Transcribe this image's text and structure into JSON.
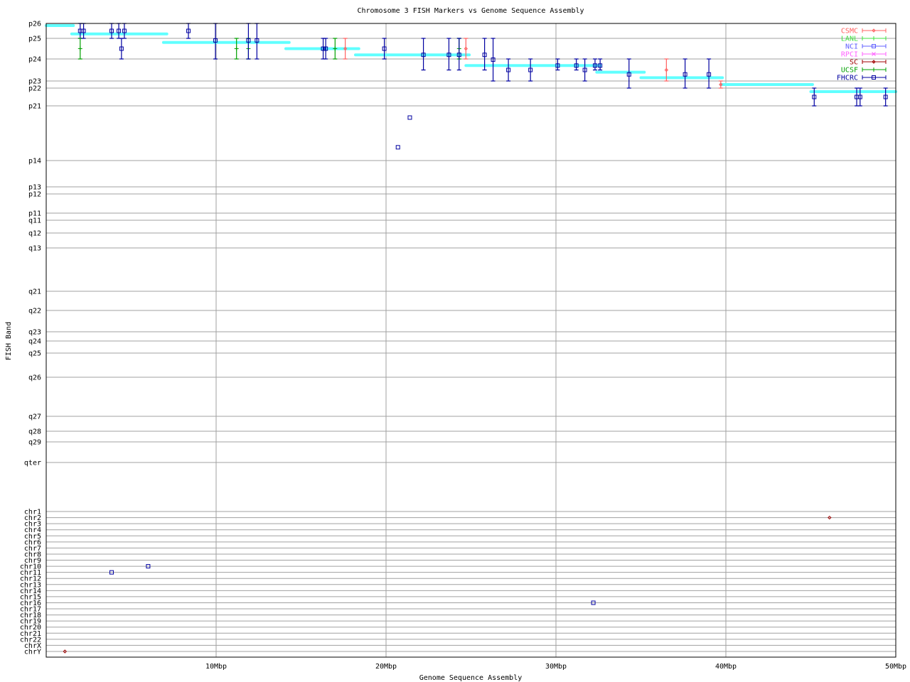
{
  "chart_data": {
    "type": "scatter",
    "title": "Chromosome 3 FISH Markers vs Genome Sequence Assembly",
    "xlabel": "Genome Sequence Assembly",
    "ylabel": "FISH Band",
    "xlim": [
      0,
      50
    ],
    "x_ticks": [
      {
        "v": 10,
        "label": "10Mbp"
      },
      {
        "v": 20,
        "label": "20Mbp"
      },
      {
        "v": 30,
        "label": "30Mbp"
      },
      {
        "v": 40,
        "label": "40Mbp"
      },
      {
        "v": 50,
        "label": "50Mbp"
      }
    ],
    "y_ticks": [
      "p26",
      "p25",
      "p24",
      "p23",
      "p22",
      "p21",
      "p14",
      "p13",
      "p12",
      "p11",
      "q11",
      "q12",
      "q13",
      "q21",
      "q22",
      "q23",
      "q24",
      "q25",
      "q26",
      "q27",
      "q28",
      "q29",
      "qter",
      "chr1",
      "chr2",
      "chr3",
      "chr4",
      "chr5",
      "chr6",
      "chr7",
      "chr8",
      "chr9",
      "chr10",
      "chr11",
      "chr12",
      "chr13",
      "chr14",
      "chr15",
      "chr16",
      "chr17",
      "chr18",
      "chr19",
      "chr20",
      "chr21",
      "chr22",
      "chrX",
      "chrY"
    ],
    "grid": true,
    "legend_position": "top-right",
    "legend": [
      {
        "name": "CSMC",
        "color": "#ff6060",
        "marker": "diamond"
      },
      {
        "name": "LANL",
        "color": "#40e040",
        "marker": "plus"
      },
      {
        "name": "NCI",
        "color": "#6060ff",
        "marker": "square"
      },
      {
        "name": "RPCI",
        "color": "#ff60ff",
        "marker": "cross"
      },
      {
        "name": "SC",
        "color": "#a00000",
        "marker": "diamond"
      },
      {
        "name": "UCSF",
        "color": "#00a000",
        "marker": "plus"
      },
      {
        "name": "FHCRC",
        "color": "#0000a0",
        "marker": "square"
      }
    ],
    "assembly_color": "#60ffff",
    "assembly_segments": [
      {
        "x0": 0,
        "x1": 1.6,
        "band": "p25.86"
      },
      {
        "x0": 1.5,
        "x1": 7.1,
        "band": "p25.3"
      },
      {
        "x0": 6.9,
        "x1": 14.3,
        "band": "p24.8"
      },
      {
        "x0": 14.1,
        "x1": 18.4,
        "band": "p24.5"
      },
      {
        "x0": 18.2,
        "x1": 24.9,
        "band": "p24.2"
      },
      {
        "x0": 24.7,
        "x1": 32.6,
        "band": "p23.7"
      },
      {
        "x0": 32.4,
        "x1": 35.2,
        "band": "p23.4"
      },
      {
        "x0": 35.0,
        "x1": 39.8,
        "band": "p23.15"
      },
      {
        "x0": 39.7,
        "x1": 45.1,
        "band": "p22.5"
      },
      {
        "x0": 45.0,
        "x1": 50.0,
        "band": "p21.8"
      }
    ],
    "points": [
      {
        "x": 2.0,
        "y": "p25.5",
        "lo": "p25",
        "hi": "p26",
        "src": "FHCRC"
      },
      {
        "x": 2.0,
        "y": "p24.5",
        "lo": "p24",
        "hi": "p25",
        "src": "UCSF"
      },
      {
        "x": 2.2,
        "y": "p25.5",
        "lo": "p25",
        "hi": "p26",
        "src": "FHCRC"
      },
      {
        "x": 3.85,
        "y": "p25.5",
        "lo": "p25",
        "hi": "p26",
        "src": "FHCRC"
      },
      {
        "x": 4.27,
        "y": "p25.5",
        "lo": "p25",
        "hi": "p26",
        "src": "FHCRC"
      },
      {
        "x": 4.43,
        "y": "p24.5",
        "lo": "p24",
        "hi": "p25",
        "src": "FHCRC"
      },
      {
        "x": 4.6,
        "y": "p25.5",
        "lo": "p25",
        "hi": "p26",
        "src": "FHCRC"
      },
      {
        "x": 8.37,
        "y": "p25.5",
        "lo": "p25",
        "hi": "p26",
        "src": "FHCRC"
      },
      {
        "x": 9.96,
        "y": "p24.9",
        "lo": "p24",
        "hi": "p26",
        "src": "FHCRC"
      },
      {
        "x": 11.2,
        "y": "p24.5",
        "lo": "p24",
        "hi": "p25",
        "src": "UCSF"
      },
      {
        "x": 11.9,
        "y": "p24.5",
        "lo": "p24",
        "hi": "p25",
        "src": "UCSF"
      },
      {
        "x": 11.9,
        "y": "p24.9",
        "lo": "p24",
        "hi": "p26",
        "src": "FHCRC"
      },
      {
        "x": 12.4,
        "y": "p24.9",
        "lo": "p24",
        "hi": "p26",
        "src": "FHCRC"
      },
      {
        "x": 16.3,
        "y": "p24.5",
        "lo": "p24",
        "hi": "p25",
        "src": "FHCRC"
      },
      {
        "x": 16.45,
        "y": "p24.5",
        "lo": "p24",
        "hi": "p25",
        "src": "FHCRC"
      },
      {
        "x": 17.0,
        "y": "p24.5",
        "lo": "p24",
        "hi": "p25",
        "src": "UCSF"
      },
      {
        "x": 17.6,
        "y": "p24.5",
        "lo": "p24",
        "hi": "p25",
        "src": "CSMC"
      },
      {
        "x": 19.9,
        "y": "p24.5",
        "lo": "p24",
        "hi": "p25",
        "src": "FHCRC"
      },
      {
        "x": 20.7,
        "y": "p15.7",
        "src": "FHCRC"
      },
      {
        "x": 21.4,
        "y": "p19.5",
        "src": "FHCRC"
      },
      {
        "x": 22.2,
        "y": "p24.2",
        "lo": "p23.5",
        "hi": "p25",
        "src": "FHCRC"
      },
      {
        "x": 23.7,
        "y": "p24.2",
        "lo": "p23.5",
        "hi": "p25",
        "src": "FHCRC"
      },
      {
        "x": 24.3,
        "y": "p24.5",
        "lo": "p24",
        "hi": "p25",
        "src": "UCSF"
      },
      {
        "x": 24.3,
        "y": "p24.2",
        "lo": "p23.5",
        "hi": "p25",
        "src": "FHCRC"
      },
      {
        "x": 24.7,
        "y": "p24.5",
        "lo": "p24",
        "hi": "p25",
        "src": "CSMC"
      },
      {
        "x": 25.8,
        "y": "p24.2",
        "lo": "p23.5",
        "hi": "p25",
        "src": "FHCRC"
      },
      {
        "x": 26.3,
        "y": "p23.97",
        "lo": "p23",
        "hi": "p25",
        "src": "FHCRC"
      },
      {
        "x": 27.2,
        "y": "p23.5",
        "lo": "p23",
        "hi": "p24",
        "src": "FHCRC"
      },
      {
        "x": 28.5,
        "y": "p23.5",
        "lo": "p23",
        "hi": "p24",
        "src": "FHCRC"
      },
      {
        "x": 30.1,
        "y": "p23.7",
        "lo": "p23.5",
        "hi": "p24",
        "src": "FHCRC"
      },
      {
        "x": 31.2,
        "y": "p23.7",
        "lo": "p23.5",
        "hi": "p24",
        "src": "FHCRC"
      },
      {
        "x": 31.7,
        "y": "p23.5",
        "lo": "p23",
        "hi": "p24",
        "src": "FHCRC"
      },
      {
        "x": 32.3,
        "y": "p23.7",
        "lo": "p23.5",
        "hi": "p24",
        "src": "FHCRC"
      },
      {
        "x": 32.6,
        "y": "p23.7",
        "lo": "p23.5",
        "hi": "p24",
        "src": "FHCRC"
      },
      {
        "x": 34.3,
        "y": "p23.3",
        "lo": "p22",
        "hi": "p24",
        "src": "FHCRC"
      },
      {
        "x": 36.5,
        "y": "p23.5",
        "lo": "p23",
        "hi": "p24",
        "src": "CSMC"
      },
      {
        "x": 37.6,
        "y": "p23.3",
        "lo": "p22",
        "hi": "p24",
        "src": "FHCRC"
      },
      {
        "x": 39.0,
        "y": "p23.3",
        "lo": "p22",
        "hi": "p24",
        "src": "FHCRC"
      },
      {
        "x": 39.7,
        "y": "p22.5",
        "lo": "p22",
        "hi": "p23",
        "src": "CSMC"
      },
      {
        "x": 45.2,
        "y": "p21.5",
        "lo": "p21",
        "hi": "p22",
        "src": "FHCRC"
      },
      {
        "x": 47.7,
        "y": "p21.5",
        "lo": "p21",
        "hi": "p22",
        "src": "FHCRC"
      },
      {
        "x": 47.9,
        "y": "p21.5",
        "lo": "p21",
        "hi": "p22",
        "src": "FHCRC"
      },
      {
        "x": 49.4,
        "y": "p21.5",
        "lo": "p21",
        "hi": "p22",
        "src": "FHCRC"
      },
      {
        "x": 1.1,
        "y": "chrY",
        "src": "SC"
      },
      {
        "x": 3.85,
        "y": "chr11",
        "src": "FHCRC"
      },
      {
        "x": 6.0,
        "y": "chr10",
        "src": "FHCRC"
      },
      {
        "x": 32.2,
        "y": "chr16",
        "src": "FHCRC"
      },
      {
        "x": 46.1,
        "y": "chr2",
        "src": "SC"
      }
    ]
  }
}
